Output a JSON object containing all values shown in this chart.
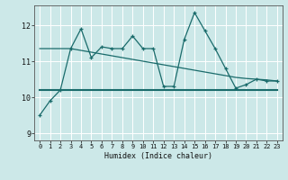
{
  "xlabel": "Humidex (Indice chaleur)",
  "bg_color": "#cce8e8",
  "grid_color": "#ffffff",
  "line_color": "#1a6b6b",
  "xlim": [
    -0.5,
    23.5
  ],
  "ylim": [
    8.8,
    12.55
  ],
  "yticks": [
    9,
    10,
    11,
    12
  ],
  "xticks": [
    0,
    1,
    2,
    3,
    4,
    5,
    6,
    7,
    8,
    9,
    10,
    11,
    12,
    13,
    14,
    15,
    16,
    17,
    18,
    19,
    20,
    21,
    22,
    23
  ],
  "series1_x": [
    0,
    1,
    2,
    3,
    4,
    5,
    6,
    7,
    8,
    9,
    10,
    11,
    12,
    13,
    14,
    15,
    16,
    17,
    18,
    19,
    20,
    21,
    22,
    23
  ],
  "series1_y": [
    9.5,
    9.9,
    10.2,
    11.35,
    11.9,
    11.1,
    11.4,
    11.35,
    11.35,
    11.7,
    11.35,
    11.35,
    10.3,
    10.3,
    11.6,
    12.35,
    11.85,
    11.35,
    10.8,
    10.25,
    10.35,
    10.5,
    10.45,
    10.45
  ],
  "series2_x": [
    0,
    23
  ],
  "series2_y": [
    10.2,
    10.2
  ],
  "series3_x": [
    0,
    1,
    2,
    3,
    4,
    5,
    6,
    7,
    8,
    9,
    10,
    11,
    12,
    13,
    14,
    15,
    16,
    17,
    18,
    19,
    20,
    21,
    22,
    23
  ],
  "series3_y": [
    11.35,
    11.35,
    11.35,
    11.35,
    11.3,
    11.25,
    11.2,
    11.15,
    11.1,
    11.05,
    11.0,
    10.95,
    10.9,
    10.85,
    10.8,
    10.75,
    10.7,
    10.65,
    10.6,
    10.55,
    10.52,
    10.5,
    10.48,
    10.45
  ]
}
